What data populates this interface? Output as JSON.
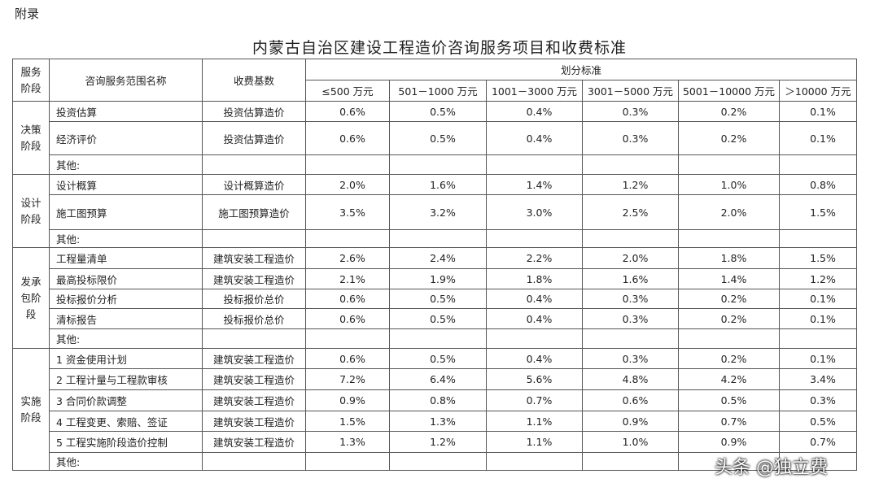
{
  "header": {
    "label": "附录",
    "title": "内蒙古自治区建设工程造价咨询服务项目和收费标准"
  },
  "table": {
    "stage_header": "服务阶段",
    "name_header": "咨询服务范围名称",
    "base_header": "收费基数",
    "group_header": "划分标准",
    "ranges": [
      "≤500 万元",
      "501－1000 万元",
      "1001－3000 万元",
      "3001－5000 万元",
      "5001－10000 万元",
      "＞10000 万元"
    ],
    "sections": [
      {
        "stage": "决策阶段",
        "rows": [
          {
            "name": "投资估算",
            "base": "投资估算造价",
            "rates": [
              "0.6%",
              "0.5%",
              "0.4%",
              "0.3%",
              "0.2%",
              "0.1%"
            ]
          },
          {
            "name": "经济评价",
            "base": "投资估算造价",
            "rates": [
              "0.6%",
              "0.5%",
              "0.4%",
              "0.3%",
              "0.2%",
              "0.1%"
            ]
          }
        ],
        "other": "其他:"
      },
      {
        "stage": "设计阶段",
        "rows": [
          {
            "name": "设计概算",
            "base": "设计概算造价",
            "rates": [
              "2.0%",
              "1.6%",
              "1.4%",
              "1.2%",
              "1.0%",
              "0.8%"
            ]
          },
          {
            "name": "施工图预算",
            "base": "施工图预算造价",
            "rates": [
              "3.5%",
              "3.2%",
              "3.0%",
              "2.5%",
              "2.0%",
              "1.5%"
            ]
          }
        ],
        "other": "其他:"
      },
      {
        "stage": "发承包阶段",
        "rows": [
          {
            "name": "工程量清单",
            "base": "建筑安装工程造价",
            "rates": [
              "2.6%",
              "2.4%",
              "2.2%",
              "2.0%",
              "1.8%",
              "1.5%"
            ]
          },
          {
            "name": "最高投标限价",
            "base": "建筑安装工程造价",
            "rates": [
              "2.1%",
              "1.9%",
              "1.8%",
              "1.6%",
              "1.4%",
              "1.2%"
            ]
          },
          {
            "name": "投标报价分析",
            "base": "投标报价总价",
            "rates": [
              "0.6%",
              "0.5%",
              "0.4%",
              "0.3%",
              "0.2%",
              "0.1%"
            ]
          },
          {
            "name": "清标报告",
            "base": "投标报价总价",
            "rates": [
              "0.6%",
              "0.5%",
              "0.4%",
              "0.3%",
              "0.2%",
              "0.1%"
            ]
          }
        ],
        "other": "其他:"
      },
      {
        "stage": "实施阶段",
        "rows": [
          {
            "name": "1 资金使用计划",
            "base": "建筑安装工程造价",
            "rates": [
              "0.6%",
              "0.5%",
              "0.4%",
              "0.3%",
              "0.2%",
              "0.1%"
            ]
          },
          {
            "name": "2 工程计量与工程款审核",
            "base": "建筑安装工程造价",
            "rates": [
              "7.2%",
              "6.4%",
              "5.6%",
              "4.8%",
              "4.2%",
              "3.4%"
            ]
          },
          {
            "name": "3 合同价款调整",
            "base": "建筑安装工程造价",
            "rates": [
              "0.9%",
              "0.8%",
              "0.7%",
              "0.6%",
              "0.5%",
              "0.3%"
            ]
          },
          {
            "name": "4 工程变更、索赔、签证",
            "base": "建筑安装工程造价",
            "rates": [
              "1.5%",
              "1.3%",
              "1.1%",
              "0.9%",
              "0.7%",
              "0.5%"
            ]
          },
          {
            "name": "5 工程实施阶段造价控制",
            "base": "建筑安装工程造价",
            "rates": [
              "1.3%",
              "1.2%",
              "1.1%",
              "1.0%",
              "0.9%",
              "0.7%"
            ]
          }
        ],
        "other": "其他:"
      }
    ]
  },
  "watermark": "头条 @独立费"
}
